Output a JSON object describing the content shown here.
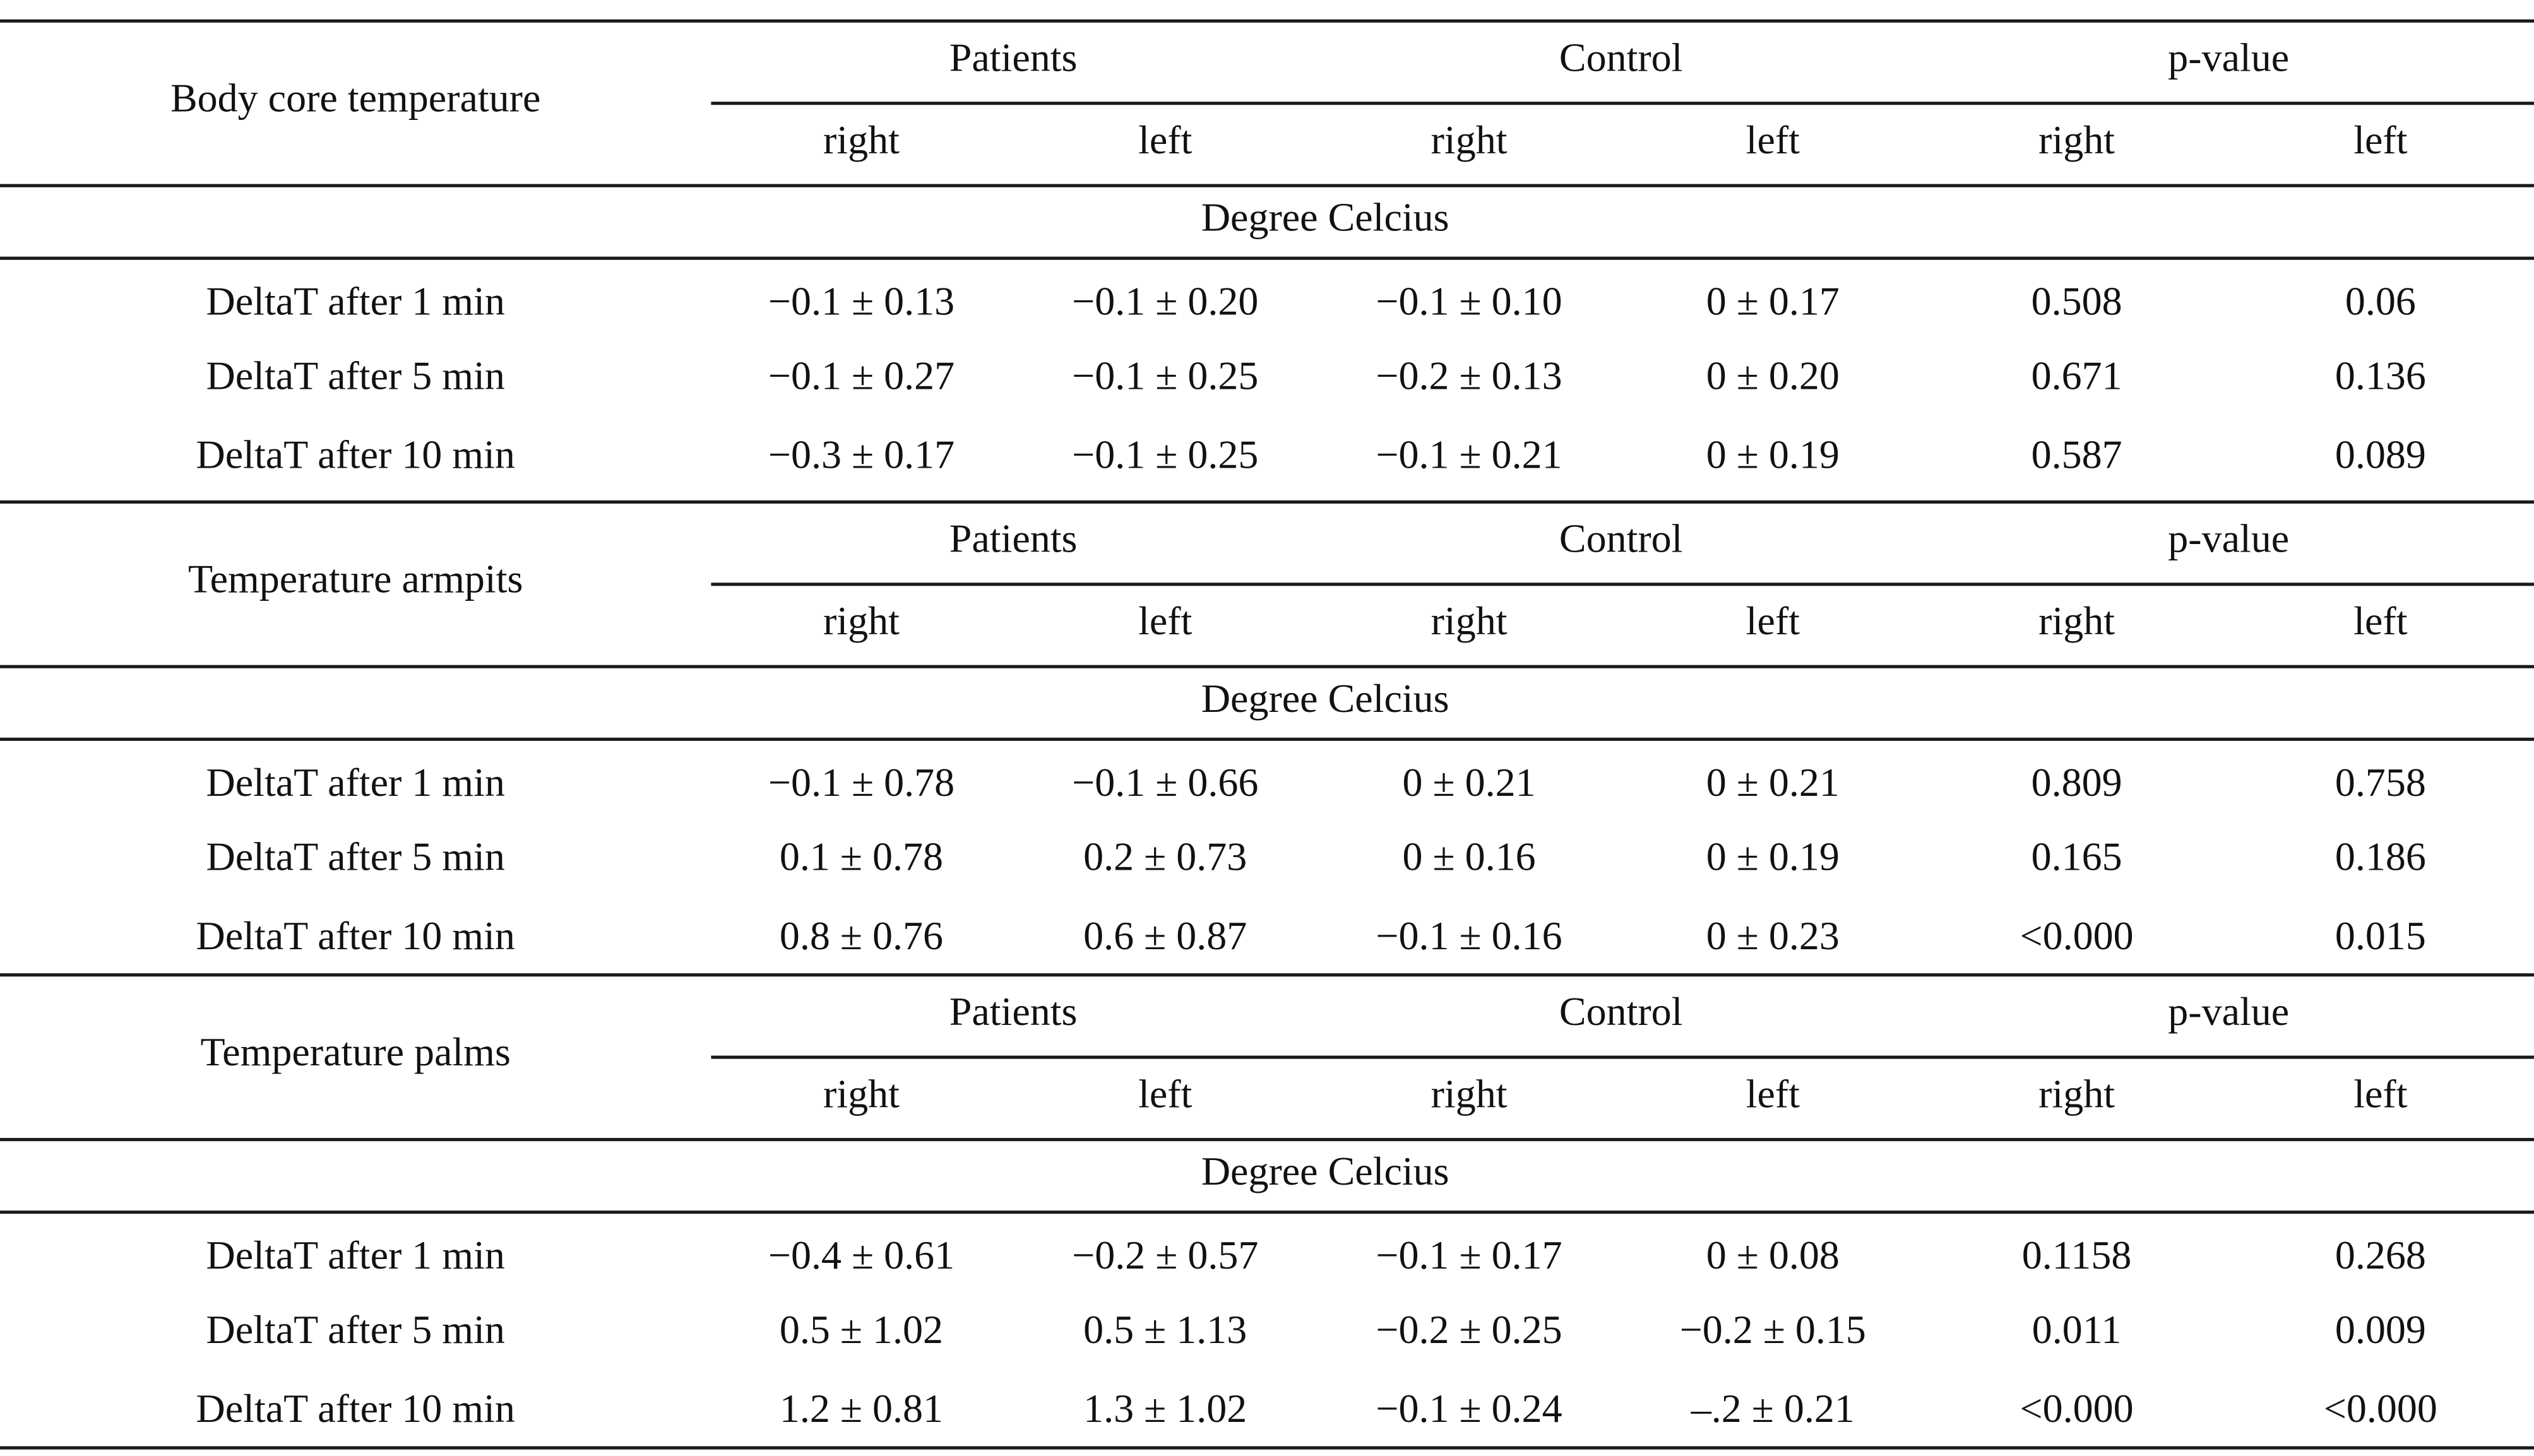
{
  "table": {
    "subheaders": [
      "right",
      "left",
      "right",
      "left",
      "right",
      "left"
    ],
    "sections": [
      {
        "title": "Body core temperature",
        "groups": [
          "Patients",
          "Control",
          "p-value"
        ],
        "unit": "Degree Celcius",
        "rows": [
          {
            "label": "DeltaT after 1 min",
            "values": [
              "−0.1 ± 0.13",
              "−0.1 ± 0.20",
              "−0.1 ± 0.10",
              "0 ± 0.17",
              "0.508",
              "0.06"
            ]
          },
          {
            "label": "DeltaT after 5 min",
            "values": [
              "−0.1 ± 0.27",
              "−0.1 ± 0.25",
              "−0.2 ± 0.13",
              "0 ± 0.20",
              "0.671",
              "0.136"
            ]
          },
          {
            "label": "DeltaT after 10 min",
            "values": [
              "−0.3 ± 0.17",
              "−0.1 ± 0.25",
              "−0.1 ± 0.21",
              "0 ± 0.19",
              "0.587",
              "0.089"
            ]
          }
        ]
      },
      {
        "title": "Temperature armpits",
        "groups": [
          "Patients",
          "Control",
          "p-value"
        ],
        "unit": "Degree Celcius",
        "rows": [
          {
            "label": "DeltaT after 1 min",
            "values": [
              "−0.1 ± 0.78",
              "−0.1 ± 0.66",
              "0 ± 0.21",
              "0 ± 0.21",
              "0.809",
              "0.758"
            ]
          },
          {
            "label": "DeltaT after 5 min",
            "values": [
              "0.1 ± 0.78",
              "0.2 ± 0.73",
              "0 ± 0.16",
              "0 ± 0.19",
              "0.165",
              "0.186"
            ]
          },
          {
            "label": "DeltaT after 10 min",
            "values": [
              "0.8 ± 0.76",
              "0.6 ± 0.87",
              "−0.1 ± 0.16",
              "0 ± 0.23",
              "<0.000",
              "0.015"
            ]
          }
        ]
      },
      {
        "title": "Temperature palms",
        "groups": [
          "Patients",
          "Control",
          "p-value"
        ],
        "unit": "Degree Celcius",
        "rows": [
          {
            "label": "DeltaT after 1 min",
            "values": [
              "−0.4 ± 0.61",
              "−0.2 ± 0.57",
              "−0.1 ± 0.17",
              "0 ± 0.08",
              "0.1158",
              "0.268"
            ]
          },
          {
            "label": "DeltaT after 5 min",
            "values": [
              "0.5 ± 1.02",
              "0.5 ± 1.13",
              "−0.2 ± 0.25",
              "−0.2 ± 0.15",
              "0.011",
              "0.009"
            ]
          },
          {
            "label": "DeltaT after 10 min",
            "values": [
              "1.2 ± 0.81",
              "1.3 ± 1.02",
              "−0.1 ± 0.24",
              "–.2 ± 0.21",
              "<0.000",
              "<0.000"
            ]
          }
        ]
      }
    ]
  }
}
